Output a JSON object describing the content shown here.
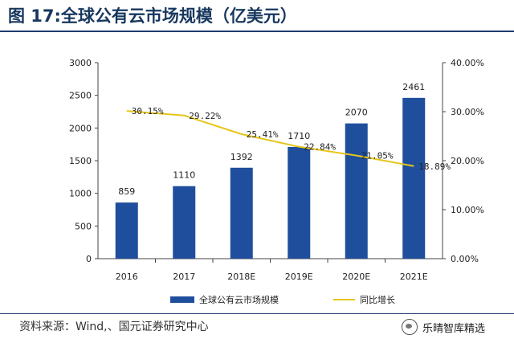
{
  "title": "图 17:全球公有云市场规模（亿美元）",
  "source": "资料来源：Wind,、国元证券研究中心",
  "watermark": "乐晴智库精选",
  "colors": {
    "bar": "#1f4e9d",
    "line": "#e6c619",
    "title": "#17375e"
  },
  "chart_data": {
    "type": "bar",
    "categories": [
      "2016",
      "2017",
      "2018E",
      "2019E",
      "2020E",
      "2021E"
    ],
    "series": [
      {
        "name": "全球公有云市场规模",
        "type": "bar",
        "axis": "left",
        "values": [
          859,
          1110,
          1392,
          1710,
          2070,
          2461
        ],
        "labels": [
          "859",
          "1110",
          "1392",
          "1710",
          "2070",
          "2461"
        ]
      },
      {
        "name": "同比增长",
        "type": "line",
        "axis": "right",
        "values": [
          30.15,
          29.22,
          25.41,
          22.84,
          21.05,
          18.89
        ],
        "labels": [
          "30.15%",
          "29.22%",
          "25.41%",
          "22.84%",
          "21.05%",
          "18.89%"
        ]
      }
    ],
    "y_left": {
      "min": 0,
      "max": 3000,
      "ticks": [
        "0",
        "500",
        "1000",
        "1500",
        "2000",
        "2500",
        "3000"
      ]
    },
    "y_right": {
      "min": 0,
      "max": 40,
      "ticks": [
        "0.00%",
        "10.00%",
        "20.00%",
        "30.00%",
        "40.00%"
      ]
    },
    "legend": {
      "position": "bottom",
      "items": [
        "全球公有云市场规模",
        "同比增长"
      ]
    },
    "grid": false
  }
}
